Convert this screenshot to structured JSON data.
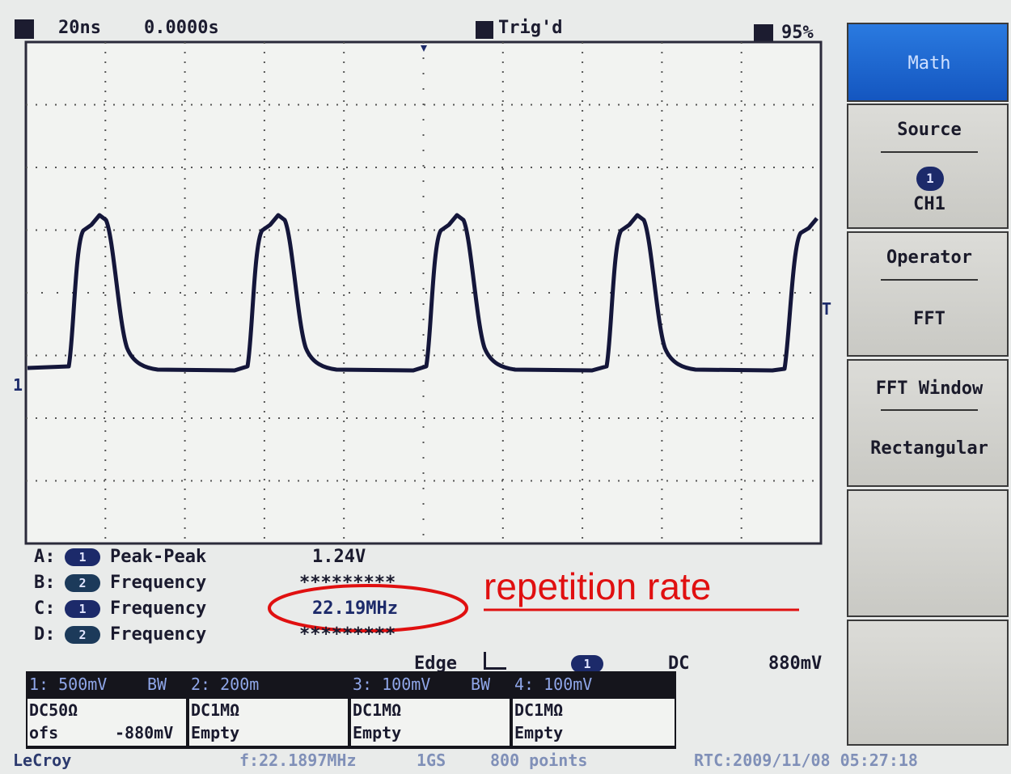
{
  "status_bar": {
    "timebase": "20ns",
    "delay": "0.0000s",
    "trigger_state": "Trig'd",
    "memory": "95%"
  },
  "markers": {
    "trigger": "T",
    "channel": "1"
  },
  "menu": {
    "title": "Math",
    "items": [
      {
        "label": "Source",
        "value_badge": "1",
        "value": "CH1"
      },
      {
        "label": "Operator",
        "value": "FFT"
      },
      {
        "label": "FFT Window",
        "value": "Rectangular"
      }
    ]
  },
  "measurements": [
    {
      "slot": "A:",
      "channel": "1",
      "name": "Peak-Peak",
      "value": "1.24V"
    },
    {
      "slot": "B:",
      "channel": "2",
      "name": "Frequency",
      "value": "*********"
    },
    {
      "slot": "C:",
      "channel": "1",
      "name": "Frequency",
      "value": "22.19MHz"
    },
    {
      "slot": "D:",
      "channel": "2",
      "name": "Frequency",
      "value": "*********"
    }
  ],
  "annotation": "repetition rate",
  "trigger_info": {
    "type": "Edge",
    "channel": "1",
    "coupling": "DC",
    "level": "880mV"
  },
  "channels": [
    {
      "scale": "1: 500mV",
      "bw": "BW",
      "coupling": "DC50Ω",
      "offset_label": "ofs",
      "offset": "-880mV"
    },
    {
      "scale": "2: 200m",
      "coupling": "DC1MΩ",
      "status": "Empty"
    },
    {
      "scale": "3: 100mV",
      "bw": "BW",
      "coupling": "DC1MΩ",
      "status": "Empty"
    },
    {
      "scale": "4: 100mV",
      "coupling": "DC1MΩ",
      "status": "Empty"
    }
  ],
  "footer": {
    "brand": "LeCroy",
    "frequency": "f:22.1897MHz",
    "sample_rate": "1GS",
    "record_length": "800 points",
    "clock": "RTC:2009/11/08 05:27:18"
  }
}
